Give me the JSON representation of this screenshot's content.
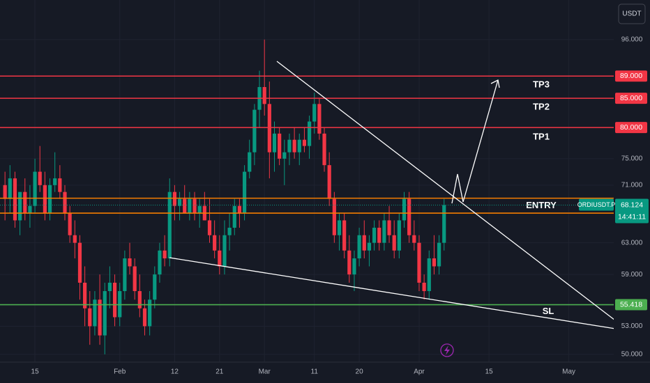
{
  "chart_data": {
    "type": "candlestick",
    "currency": "USDT",
    "up_color": "#089981",
    "down_color": "#f23645",
    "grid": true,
    "log_scale": true,
    "ylim": [
      49.2,
      104.2
    ],
    "yticks": [
      {
        "value": 50,
        "label": "50.000"
      },
      {
        "value": 53,
        "label": "53.000"
      },
      {
        "value": 59,
        "label": "59.000"
      },
      {
        "value": 63,
        "label": "63.000"
      },
      {
        "value": 71,
        "label": "71.000"
      },
      {
        "value": 75,
        "label": "75.000"
      },
      {
        "value": 96,
        "label": "96.000"
      }
    ],
    "xlim": [
      "01-08",
      "05-10"
    ],
    "xticks": [
      {
        "value": "01-15",
        "label": "15"
      },
      {
        "value": "02-01",
        "label": "Feb"
      },
      {
        "value": "02-12",
        "label": "12"
      },
      {
        "value": "02-21",
        "label": "21"
      },
      {
        "value": "03-01",
        "label": "Mar"
      },
      {
        "value": "03-11",
        "label": "11"
      },
      {
        "value": "03-20",
        "label": "20"
      },
      {
        "value": "04-01",
        "label": "Apr"
      },
      {
        "value": "04-15",
        "label": "15"
      },
      {
        "value": "05-01",
        "label": "May"
      }
    ],
    "x": [
      "01-09",
      "01-10",
      "01-11",
      "01-12",
      "01-13",
      "01-14",
      "01-15",
      "01-16",
      "01-17",
      "01-18",
      "01-19",
      "01-20",
      "01-21",
      "01-22",
      "01-23",
      "01-24",
      "01-25",
      "01-26",
      "01-27",
      "01-28",
      "01-29",
      "01-30",
      "01-31",
      "02-01",
      "02-02",
      "02-03",
      "02-04",
      "02-05",
      "02-06",
      "02-07",
      "02-08",
      "02-09",
      "02-10",
      "02-11",
      "02-12",
      "02-13",
      "02-14",
      "02-15",
      "02-16",
      "02-17",
      "02-18",
      "02-19",
      "02-20",
      "02-21",
      "02-22",
      "02-23",
      "02-24",
      "02-25",
      "02-26",
      "02-27",
      "02-28",
      "02-29",
      "03-01",
      "03-02",
      "03-03",
      "03-04",
      "03-05",
      "03-06",
      "03-07",
      "03-08",
      "03-09",
      "03-10",
      "03-11",
      "03-12",
      "03-13",
      "03-14",
      "03-15",
      "03-16",
      "03-17",
      "03-18",
      "03-19",
      "03-20",
      "03-21",
      "03-22",
      "03-23",
      "03-24",
      "03-25",
      "03-26",
      "03-27",
      "03-28",
      "03-29",
      "03-30",
      "03-31",
      "04-01",
      "04-02",
      "04-03",
      "04-04",
      "04-05",
      "04-06"
    ],
    "open": [
      71,
      69,
      72,
      66,
      70,
      67,
      68,
      73,
      71,
      67,
      71,
      72,
      70,
      67,
      64,
      63,
      58,
      55,
      53,
      56,
      52,
      57,
      58,
      54,
      57,
      61,
      60,
      57,
      55,
      53,
      56,
      59,
      62,
      61,
      70,
      68,
      69,
      67,
      69,
      67,
      68,
      66,
      64,
      62,
      60,
      64,
      65,
      68,
      67,
      73,
      76,
      83,
      87,
      84,
      76,
      79,
      75,
      76,
      78,
      76,
      78,
      77,
      81,
      84,
      79,
      74,
      69,
      64,
      66,
      62,
      59,
      61,
      64,
      62,
      63,
      65,
      63,
      66,
      64,
      62,
      66,
      69,
      64,
      63,
      58,
      57,
      61,
      60,
      63
    ],
    "high": [
      73,
      74,
      73,
      70,
      72,
      71,
      75,
      77,
      73,
      72,
      76,
      74,
      71,
      68,
      66,
      64,
      60,
      57,
      57,
      59,
      58,
      60,
      59,
      58,
      62,
      63,
      61,
      59,
      56,
      57,
      60,
      63,
      64,
      72,
      71,
      70,
      71,
      70,
      70,
      69,
      70,
      69,
      66,
      64,
      66,
      67,
      69,
      69,
      74,
      78,
      84,
      90,
      96,
      88,
      81,
      80,
      78,
      79,
      80,
      79,
      80,
      82,
      86,
      85,
      80,
      76,
      70,
      67,
      67,
      64,
      62,
      65,
      66,
      64,
      66,
      66,
      67,
      68,
      66,
      67,
      70,
      70,
      66,
      64,
      59,
      62,
      64,
      64,
      69
    ],
    "low": [
      66,
      67,
      65,
      64,
      66,
      65,
      67,
      70,
      66,
      66,
      70,
      69,
      66,
      63,
      61,
      56,
      53,
      51,
      52,
      51,
      50,
      55,
      53,
      53,
      56,
      59,
      56,
      54,
      52,
      52,
      55,
      58,
      60,
      60,
      66,
      66,
      67,
      66,
      66,
      65,
      66,
      63,
      61,
      59,
      59,
      62,
      64,
      65,
      66,
      72,
      74,
      80,
      82,
      72,
      73,
      74,
      71,
      74,
      75,
      74,
      76,
      75,
      79,
      78,
      73,
      68,
      63,
      62,
      61,
      58,
      57,
      60,
      61,
      60,
      62,
      62,
      62,
      63,
      61,
      61,
      65,
      63,
      62,
      57,
      56,
      56,
      59,
      59,
      62
    ],
    "close": [
      69,
      72,
      66,
      70,
      67,
      68,
      73,
      71,
      67,
      71,
      72,
      70,
      67,
      64,
      63,
      58,
      55,
      53,
      56,
      52,
      57,
      58,
      54,
      57,
      61,
      60,
      57,
      55,
      53,
      56,
      59,
      62,
      61,
      70,
      68,
      69,
      67,
      69,
      67,
      68,
      66,
      64,
      62,
      60,
      64,
      65,
      68,
      67,
      73,
      76,
      83,
      87,
      84,
      76,
      79,
      75,
      76,
      78,
      76,
      78,
      77,
      81,
      84,
      79,
      74,
      69,
      64,
      66,
      62,
      59,
      61,
      64,
      62,
      63,
      65,
      63,
      66,
      64,
      62,
      66,
      69,
      64,
      63,
      58,
      57,
      61,
      60,
      63,
      68.124
    ],
    "levels": [
      {
        "name": "TP3",
        "value": 89,
        "value_label": "89.000",
        "color": "#f23645"
      },
      {
        "name": "TP2",
        "value": 85,
        "value_label": "85.000",
        "color": "#f23645"
      },
      {
        "name": "TP1",
        "value": 80,
        "value_label": "80.000",
        "color": "#f23645"
      },
      {
        "name": "SL",
        "value": 55.418,
        "value_label": "55.418",
        "color": "#4caf50"
      }
    ],
    "entry_zone": {
      "name": "ENTRY",
      "values": [
        69.1,
        67.0
      ],
      "color": "#f57c00"
    },
    "last_price": {
      "symbol": "ORDIUSDT.P",
      "value": 68.124,
      "countdown": "14:41:11",
      "color": "#089981"
    }
  }
}
